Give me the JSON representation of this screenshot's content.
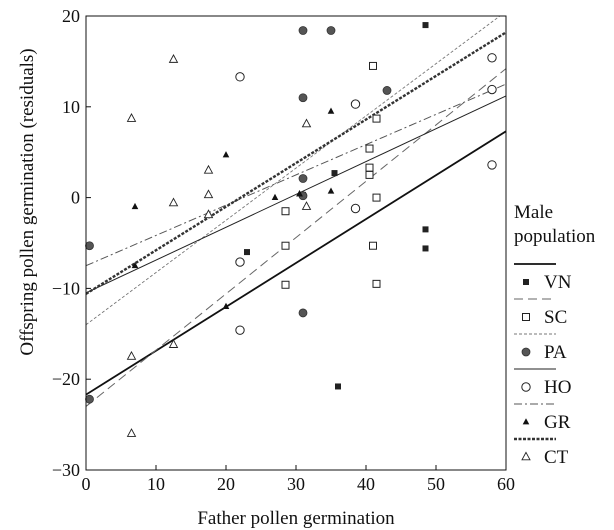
{
  "chart_data": {
    "type": "scatter",
    "xlabel": "Father pollen germination",
    "ylabel": "Offspring pollen germination (residuals)",
    "xlim": [
      0,
      60
    ],
    "ylim": [
      -30,
      20
    ],
    "x_ticks": [
      0,
      10,
      20,
      30,
      40,
      50,
      60
    ],
    "y_ticks": [
      -30,
      -20,
      -10,
      0,
      10,
      20
    ],
    "grid": false,
    "legend": {
      "title_lines": [
        "Male",
        "population"
      ],
      "placement": "right"
    },
    "series": [
      {
        "name": "VN",
        "marker": "filled-square",
        "line_style": "solid-thick",
        "points": [
          [
            23,
            -6
          ],
          [
            31,
            0.3
          ],
          [
            35.5,
            2.7
          ],
          [
            36,
            -20.8
          ],
          [
            48.5,
            19
          ],
          [
            48.5,
            -3.5
          ],
          [
            48.5,
            -5.6
          ]
        ],
        "fit": [
          [
            0,
            -21.7
          ],
          [
            60,
            7.3
          ]
        ]
      },
      {
        "name": "SC",
        "marker": "open-square",
        "line_style": "long-dash",
        "points": [
          [
            28.5,
            -1.5
          ],
          [
            28.5,
            -5.3
          ],
          [
            28.5,
            -9.6
          ],
          [
            40.5,
            5.4
          ],
          [
            40.5,
            2.5
          ],
          [
            40.5,
            3.3
          ],
          [
            41,
            -5.3
          ],
          [
            41,
            14.5
          ],
          [
            41.5,
            8.7
          ],
          [
            41.5,
            0
          ],
          [
            41.5,
            -9.5
          ]
        ],
        "fit": [
          [
            0,
            -23
          ],
          [
            60,
            14.2
          ]
        ]
      },
      {
        "name": "PA",
        "marker": "filled-circle",
        "line_style": "short-dash",
        "points": [
          [
            0.5,
            -5.3
          ],
          [
            0.5,
            -22.2
          ],
          [
            31,
            18.4
          ],
          [
            31,
            11
          ],
          [
            31,
            2.1
          ],
          [
            31,
            0.2
          ],
          [
            31,
            -12.7
          ],
          [
            35,
            18.4
          ],
          [
            43,
            11.8
          ]
        ],
        "fit": [
          [
            0,
            -14
          ],
          [
            60,
            20.5
          ]
        ]
      },
      {
        "name": "HO",
        "marker": "open-circle",
        "line_style": "thin-solid",
        "points": [
          [
            22,
            13.3
          ],
          [
            22,
            -7.1
          ],
          [
            22,
            -14.6
          ],
          [
            38.5,
            10.3
          ],
          [
            38.5,
            -1.2
          ],
          [
            58,
            15.4
          ],
          [
            58,
            11.9
          ],
          [
            58,
            3.6
          ]
        ],
        "fit": [
          [
            0,
            -10.5
          ],
          [
            60,
            11.2
          ]
        ]
      },
      {
        "name": "GR",
        "marker": "filled-triangle",
        "line_style": "dash-dot",
        "points": [
          [
            7,
            -1
          ],
          [
            7,
            -7.5
          ],
          [
            20,
            4.7
          ],
          [
            20,
            -12
          ],
          [
            27,
            0
          ],
          [
            30.5,
            0.4
          ],
          [
            30.5,
            0.4
          ],
          [
            35,
            0.7
          ],
          [
            35,
            9.5
          ]
        ],
        "fit": [
          [
            0,
            -7.5
          ],
          [
            60,
            12.5
          ]
        ]
      },
      {
        "name": "CT",
        "marker": "open-triangle",
        "line_style": "dotted-thick",
        "points": [
          [
            6.5,
            8.7
          ],
          [
            6.5,
            -17.5
          ],
          [
            6.5,
            -26
          ],
          [
            12.5,
            15.2
          ],
          [
            12.5,
            -0.6
          ],
          [
            12.5,
            -16.2
          ],
          [
            17.5,
            3
          ],
          [
            17.5,
            0.3
          ],
          [
            17.5,
            -1.9
          ],
          [
            31.5,
            8.1
          ],
          [
            31.5,
            -1
          ]
        ],
        "fit": [
          [
            0,
            -10.6
          ],
          [
            60,
            18.2
          ]
        ]
      }
    ]
  }
}
